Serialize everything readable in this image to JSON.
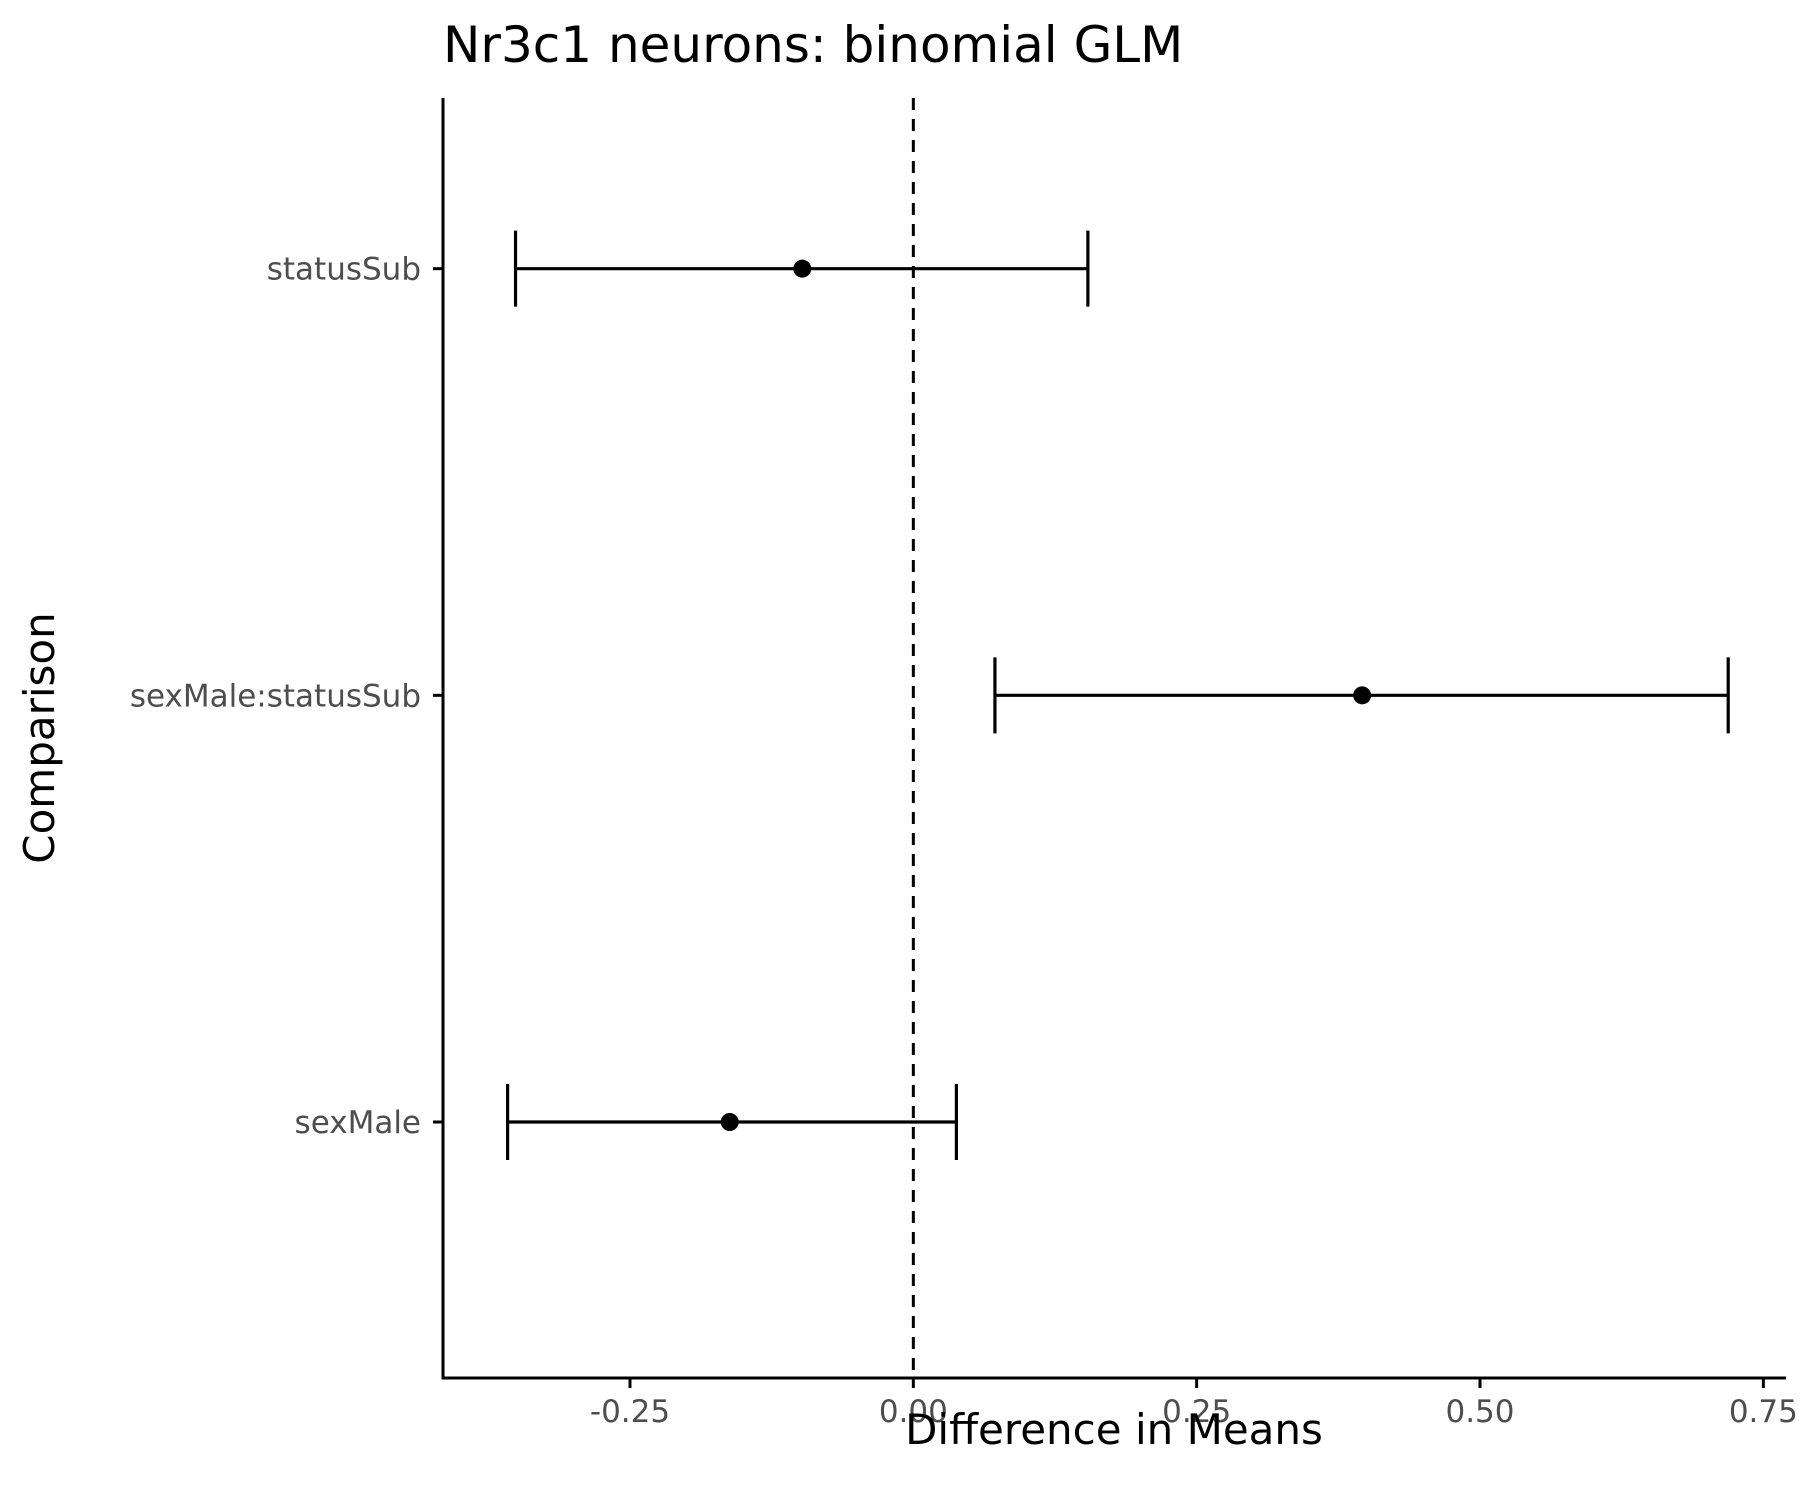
{
  "chart_data": {
    "type": "scatter",
    "title": "Nr3c1 neurons: binomial GLM",
    "xlabel": "Difference in Means",
    "ylabel": "Comparison",
    "xlim": [
      -0.415,
      0.77
    ],
    "xticks": [
      -0.25,
      0.0,
      0.25,
      0.5,
      0.75
    ],
    "xtick_labels": [
      "-0.25",
      "0.00",
      "0.25",
      "0.50",
      "0.75"
    ],
    "categories": [
      "statusSub",
      "sexMale:statusSub",
      "sexMale"
    ],
    "estimates": [
      -0.098,
      0.396,
      -0.162
    ],
    "ci_lower": [
      -0.351,
      0.072,
      -0.358
    ],
    "ci_upper": [
      0.154,
      0.719,
      0.038
    ],
    "reference_line": 0,
    "grid": false,
    "legend": "none"
  }
}
